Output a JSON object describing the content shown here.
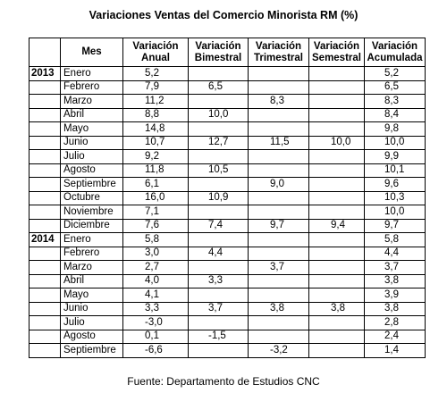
{
  "title": "Variaciones Ventas del Comercio Minorista RM (%)",
  "table": {
    "header": [
      "Mes",
      "Variación Anual",
      "Variación Bimestral",
      "Variación Trimestral",
      "Variación Semestral",
      "Variación Acumulada"
    ],
    "rows": [
      [
        "2013",
        "Enero",
        "5,2",
        null,
        null,
        null,
        "5,2"
      ],
      [
        null,
        "Febrero",
        "7,9",
        "6,5",
        null,
        null,
        "6,5"
      ],
      [
        null,
        "Marzo",
        "11,2",
        null,
        "8,3",
        null,
        "8,3"
      ],
      [
        null,
        "Abril",
        "8,8",
        "10,0",
        null,
        null,
        "8,4"
      ],
      [
        null,
        "Mayo",
        "14,8",
        null,
        null,
        null,
        "9,8"
      ],
      [
        null,
        "Junio",
        "10,7",
        "12,7",
        "11,5",
        "10,0",
        "10,0"
      ],
      [
        null,
        "Julio",
        "9,2",
        null,
        null,
        null,
        "9,9"
      ],
      [
        null,
        "Agosto",
        "11,8",
        "10,5",
        null,
        null,
        "10,1"
      ],
      [
        null,
        "Septiembre",
        "6,1",
        null,
        "9,0",
        null,
        "9,6"
      ],
      [
        null,
        "Octubre",
        "16,0",
        "10,9",
        null,
        null,
        "10,3"
      ],
      [
        null,
        "Noviembre",
        "7,1",
        null,
        null,
        null,
        "10,0"
      ],
      [
        null,
        "Diciembre",
        "7,6",
        "7,4",
        "9,7",
        "9,4",
        "9,7"
      ],
      [
        "2014",
        "Enero",
        "5,8",
        null,
        null,
        null,
        "5,8"
      ],
      [
        null,
        "Febrero",
        "3,0",
        "4,4",
        null,
        null,
        "4,4"
      ],
      [
        null,
        "Marzo",
        "2,7",
        null,
        "3,7",
        null,
        "3,7"
      ],
      [
        null,
        "Abril",
        "4,0",
        "3,3",
        null,
        null,
        "3,8"
      ],
      [
        null,
        "Mayo",
        "4,1",
        null,
        null,
        null,
        "3,9"
      ],
      [
        null,
        "Junio",
        "3,3",
        "3,7",
        "3,8",
        "3,8",
        "3,8"
      ],
      [
        null,
        "Julio",
        "-3,0",
        null,
        null,
        null,
        "2,8"
      ],
      [
        null,
        "Agosto",
        "0,1",
        "-1,5",
        null,
        null,
        "2,4"
      ],
      [
        null,
        "Septiembre",
        "-6,6",
        null,
        "-3,2",
        null,
        "1,4"
      ]
    ]
  },
  "source": "Fuente: Departamento de Estudios CNC"
}
